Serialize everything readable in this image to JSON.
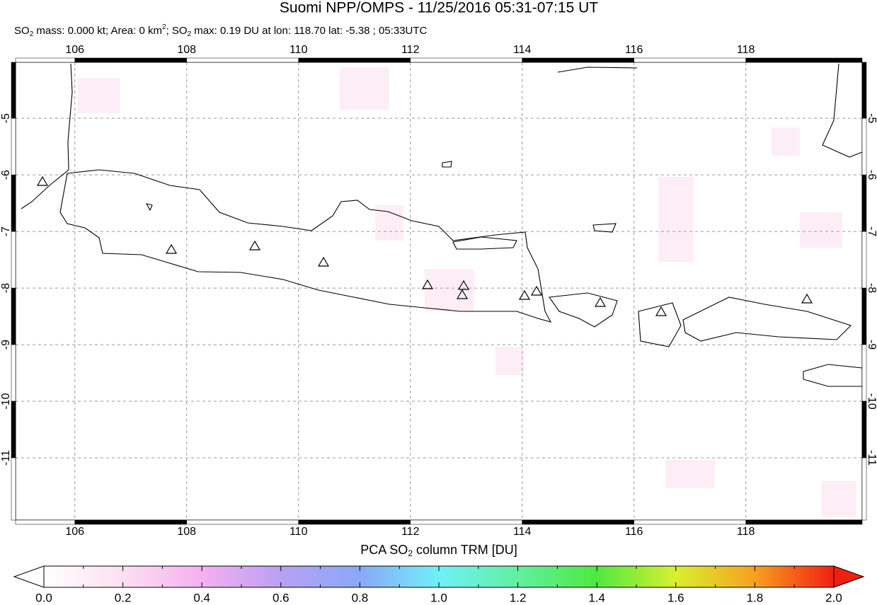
{
  "header": {
    "title": "Suomi NPP/OMPS - 11/25/2016 05:31-07:15 UT",
    "subtitle": [
      "SO",
      "2",
      " mass: 0.000 kt; Area: 0 km",
      "2",
      "; SO",
      "2",
      " max: 0.19 DU at lon: 118.70 lat: -5.38 ; 05:33UTC"
    ]
  },
  "map": {
    "lonlim": [
      104.94,
      120.08
    ],
    "latlim": [
      -12.1,
      -4.01
    ],
    "lonticks": [
      106,
      108,
      110,
      112,
      114,
      116,
      118
    ],
    "latticks": [
      -5,
      -6,
      -7,
      -8,
      -9,
      -10,
      -11
    ]
  },
  "colorbar": {
    "title": [
      "PCA SO",
      "2",
      " column TRM [DU]"
    ],
    "lim": [
      0,
      2
    ],
    "ticks": [
      {
        "value": 0,
        "label": "0.0"
      },
      {
        "value": 0.2,
        "label": "0.2"
      },
      {
        "value": 0.4,
        "label": "0.4"
      },
      {
        "value": 0.6,
        "label": "0.6"
      },
      {
        "value": 0.8,
        "label": "0.8"
      },
      {
        "value": 1,
        "label": "1.0"
      },
      {
        "value": 1.2,
        "label": "1.2"
      },
      {
        "value": 1.4,
        "label": "1.4"
      },
      {
        "value": 1.6,
        "label": "1.6"
      },
      {
        "value": 1.8,
        "label": "1.8"
      },
      {
        "value": 2,
        "label": "2.0"
      }
    ]
  }
}
